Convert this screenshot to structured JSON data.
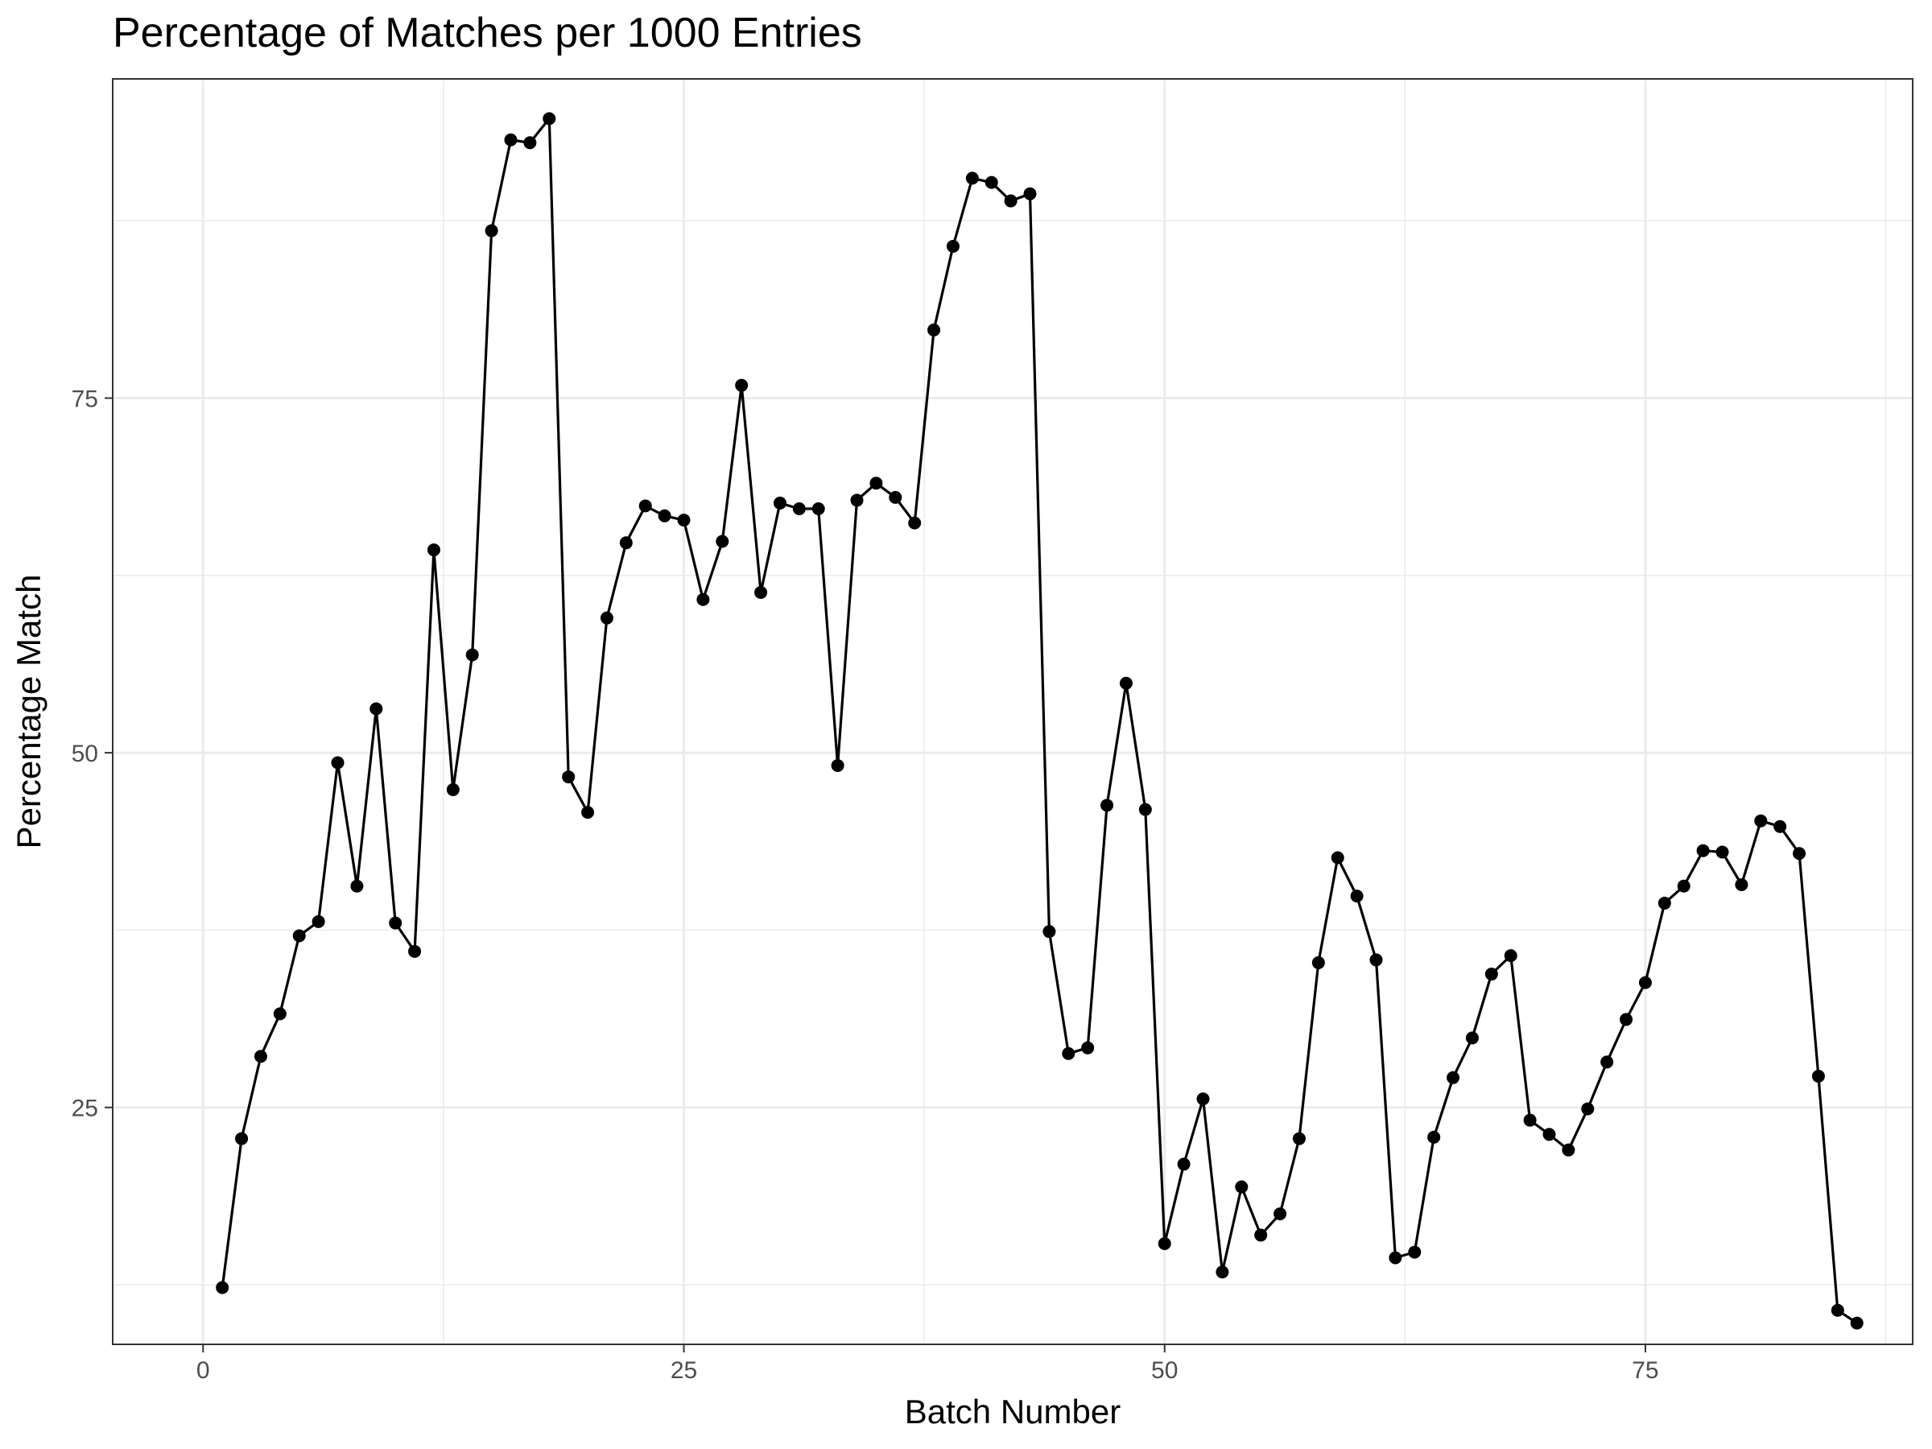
{
  "chart_data": {
    "type": "line",
    "title": "Percentage of Matches per 1000 Entries",
    "xlabel": "Batch Number",
    "ylabel": "Percentage Match",
    "xlim": [
      -4.7,
      88.9
    ],
    "ylim": [
      8.3,
      97.5
    ],
    "x_ticks": [
      0,
      25,
      50,
      75
    ],
    "y_ticks": [
      25,
      50,
      75
    ],
    "x_minor_ticks": [
      12.5,
      37.5,
      62.5,
      87.5
    ],
    "y_minor_ticks": [
      12.5,
      37.5,
      62.5,
      87.5
    ],
    "grid": true,
    "series": [
      {
        "x": [
          1,
          2,
          3,
          4,
          5,
          6,
          7,
          8,
          9,
          10,
          11,
          12,
          13,
          14,
          15,
          16,
          17,
          18,
          19,
          20,
          21,
          22,
          23,
          24,
          25,
          26,
          27,
          28,
          29,
          30,
          31,
          32,
          33,
          34,
          35,
          36,
          37,
          38,
          39,
          40,
          41,
          42,
          43,
          44,
          45,
          46,
          47,
          48,
          49,
          50,
          51,
          52,
          53,
          54,
          55,
          56,
          57,
          58,
          59,
          60,
          61,
          62,
          63,
          64,
          65,
          66,
          67,
          68,
          69,
          70,
          71,
          72,
          73,
          74,
          75,
          76,
          77,
          78,
          79,
          80,
          81,
          82,
          83,
          84,
          85,
          86
        ],
        "values": [
          12.3,
          22.8,
          28.6,
          31.6,
          37.1,
          38.1,
          49.3,
          40.6,
          53.1,
          38.0,
          36.0,
          64.3,
          47.4,
          56.9,
          86.8,
          93.2,
          93.0,
          94.7,
          48.3,
          45.8,
          59.5,
          64.8,
          67.4,
          66.7,
          66.4,
          60.8,
          64.9,
          75.9,
          61.3,
          67.6,
          67.2,
          67.2,
          49.1,
          67.8,
          69.0,
          68.0,
          66.2,
          79.8,
          85.7,
          90.5,
          90.2,
          88.9,
          89.4,
          37.4,
          28.8,
          29.2,
          46.3,
          54.9,
          46.0,
          15.4,
          21.0,
          25.6,
          13.4,
          19.4,
          16.0,
          17.5,
          22.8,
          35.2,
          42.6,
          39.9,
          35.4,
          14.4,
          14.8,
          22.9,
          27.1,
          29.9,
          34.4,
          35.7,
          24.1,
          23.1,
          22.0,
          24.9,
          28.2,
          31.2,
          33.8,
          39.4,
          40.6,
          43.1,
          43.0,
          40.7,
          45.2,
          44.8,
          42.9,
          27.2,
          10.7,
          9.8
        ]
      }
    ]
  }
}
